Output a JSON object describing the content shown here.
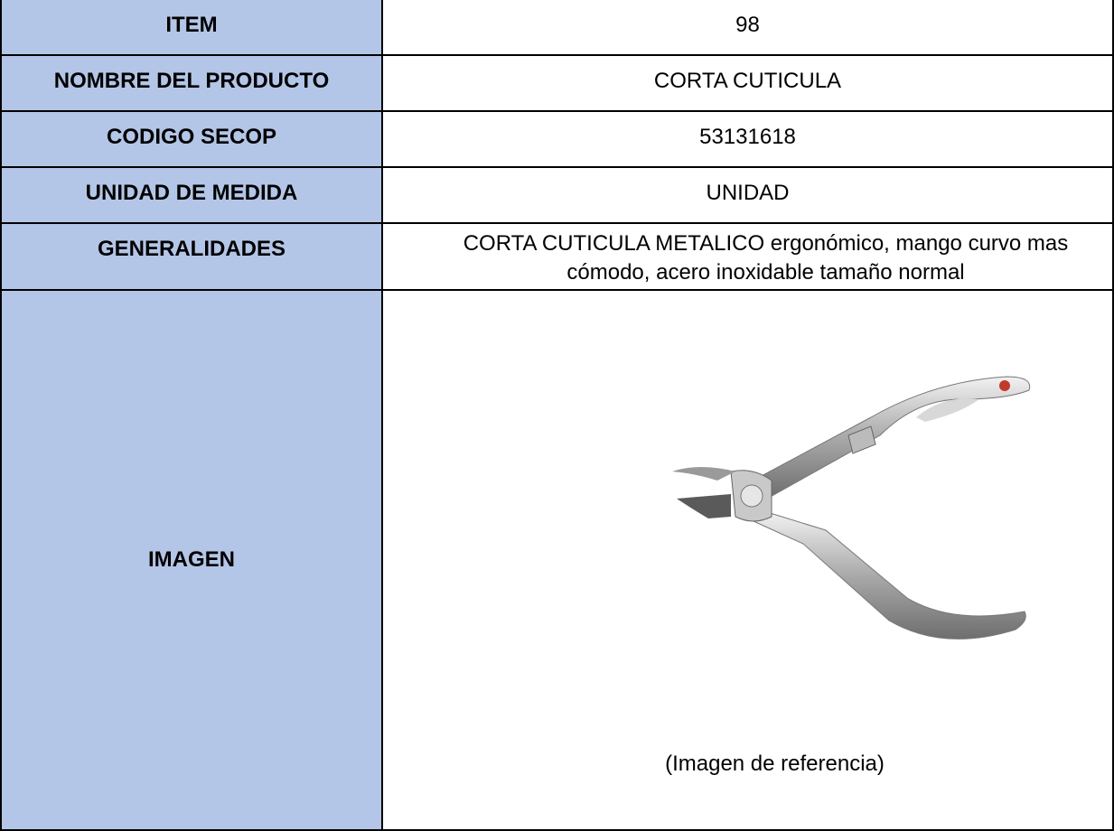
{
  "table": {
    "rows": [
      {
        "label": "ITEM",
        "value": 98
      },
      {
        "label": "NOMBRE DEL PRODUCTO",
        "value": "CORTA CUTICULA"
      },
      {
        "label": "CODIGO SECOP",
        "value": 53131618
      },
      {
        "label": "UNIDAD DE MEDIDA",
        "value": "UNIDAD"
      },
      {
        "label": "GENERALIDADES",
        "value": "CORTA CUTICULA METALICO ergonómico, mango curvo mas cómodo, acero inoxidable tamaño normal"
      },
      {
        "label": "IMAGEN",
        "caption": "(Imagen de referencia)"
      }
    ]
  }
}
